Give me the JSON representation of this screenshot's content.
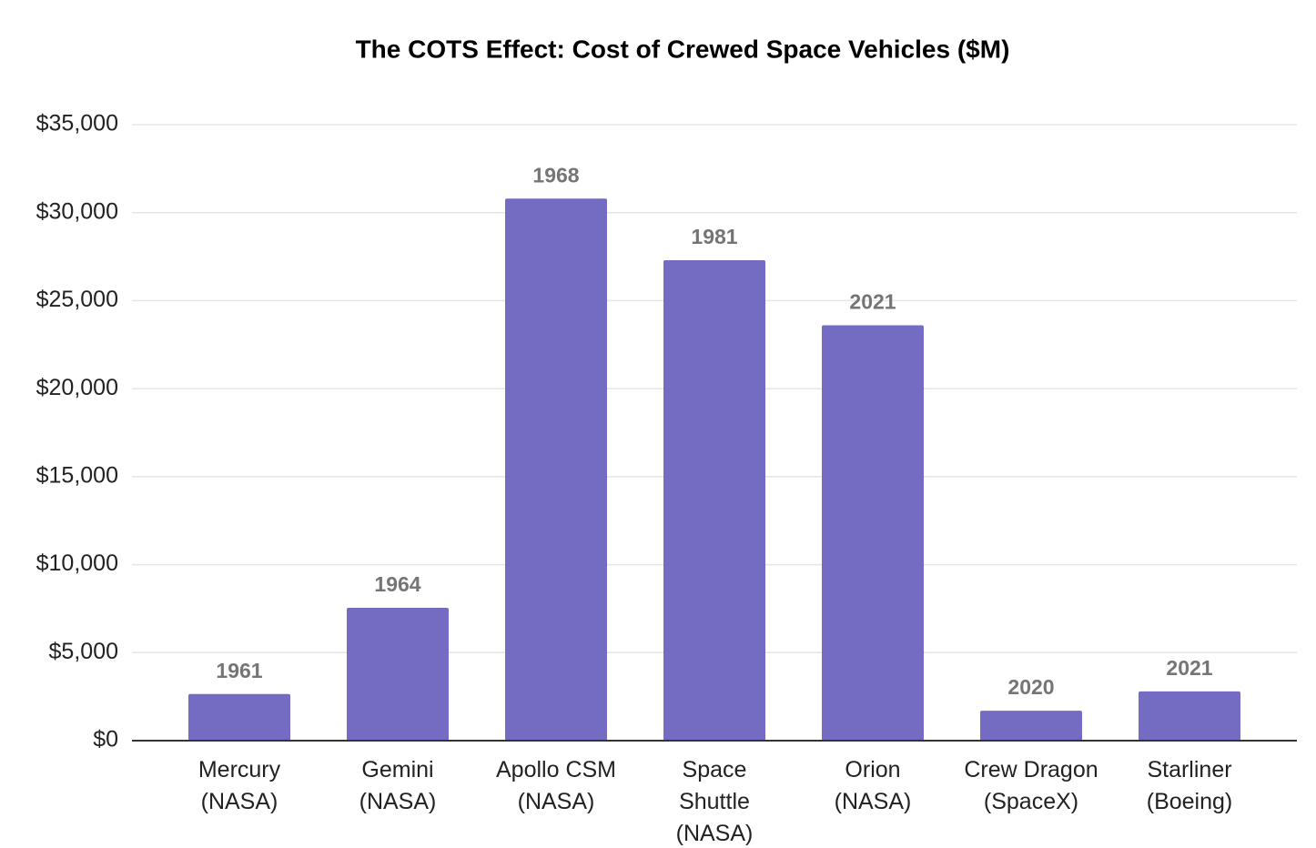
{
  "chart_data": {
    "type": "bar",
    "title": "The COTS Effect: Cost of Crewed Space Vehicles ($M)",
    "categories": [
      [
        "Mercury",
        "(NASA)"
      ],
      [
        "Gemini",
        "(NASA)"
      ],
      [
        "Apollo CSM",
        "(NASA)"
      ],
      [
        "Space",
        "Shuttle",
        "(NASA)"
      ],
      [
        "Orion",
        "(NASA)"
      ],
      [
        "Crew Dragon",
        "(SpaceX)"
      ],
      [
        "Starliner",
        "(Boeing)"
      ]
    ],
    "values": [
      2650,
      7550,
      30800,
      27300,
      23600,
      1700,
      2800
    ],
    "years": [
      "1961",
      "1964",
      "1968",
      "1981",
      "2021",
      "2020",
      "2021"
    ],
    "color": "#746bc2",
    "ylim": [
      0,
      35000
    ],
    "yticks": [
      {
        "value": 0,
        "label": "$0"
      },
      {
        "value": 5000,
        "label": "$5,000"
      },
      {
        "value": 10000,
        "label": "$10,000"
      },
      {
        "value": 15000,
        "label": "$15,000"
      },
      {
        "value": 20000,
        "label": "$20,000"
      },
      {
        "value": 25000,
        "label": "$25,000"
      },
      {
        "value": 30000,
        "label": "$30,000"
      },
      {
        "value": 35000,
        "label": "$35,000"
      }
    ],
    "grid": true
  }
}
